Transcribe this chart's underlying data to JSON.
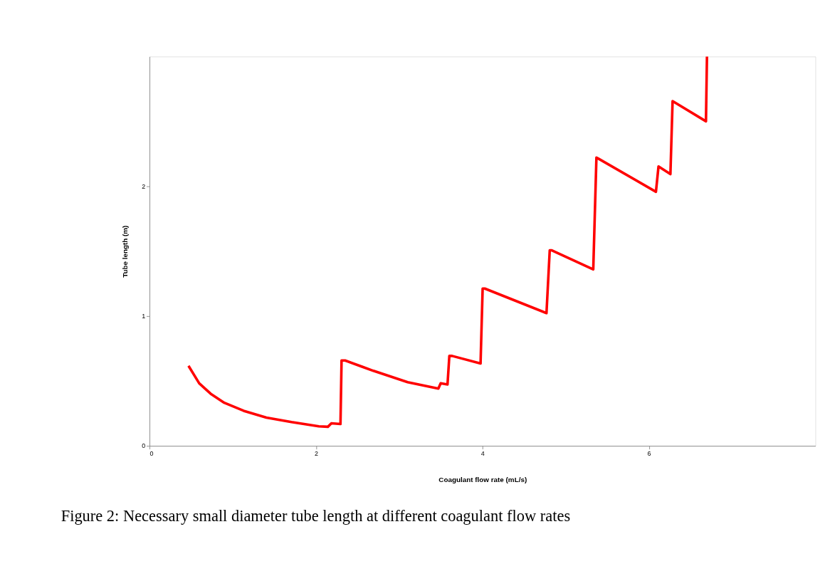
{
  "chart_data": {
    "type": "line",
    "xlabel": "Coagulant flow rate (mL/s)",
    "ylabel": "Tube length (m)",
    "annotations": [
      "Figure 2: Necessary small diameter tube length at different coagulant flow rates"
    ],
    "xlim": [
      0,
      8
    ],
    "xticks": [
      0,
      2,
      4,
      6
    ],
    "ylim": [
      0,
      3
    ],
    "yticks": [
      0,
      1,
      2
    ],
    "grid": false,
    "legend": false,
    "series": [
      {
        "color": "#ff0000",
        "x": [
          0.468,
          0.597,
          0.734,
          0.898,
          1.131,
          1.404,
          1.706,
          2.034,
          2.143,
          2.185,
          2.294,
          2.307,
          2.349,
          2.69,
          3.101,
          3.47,
          3.498,
          3.58,
          3.602,
          3.635,
          3.977,
          4.002,
          4.028,
          4.769,
          4.808,
          4.833,
          5.331,
          5.369,
          5.394,
          6.084,
          6.115,
          6.258,
          6.284,
          6.685,
          6.697
        ],
        "values": [
          0.617,
          0.482,
          0.402,
          0.332,
          0.27,
          0.218,
          0.183,
          0.15,
          0.147,
          0.174,
          0.168,
          0.658,
          0.658,
          0.578,
          0.491,
          0.441,
          0.482,
          0.473,
          0.693,
          0.693,
          0.635,
          1.212,
          1.212,
          1.023,
          1.507,
          1.507,
          1.36,
          2.222,
          2.213,
          1.958,
          2.153,
          2.094,
          2.657,
          2.501,
          3.0
        ]
      }
    ]
  }
}
